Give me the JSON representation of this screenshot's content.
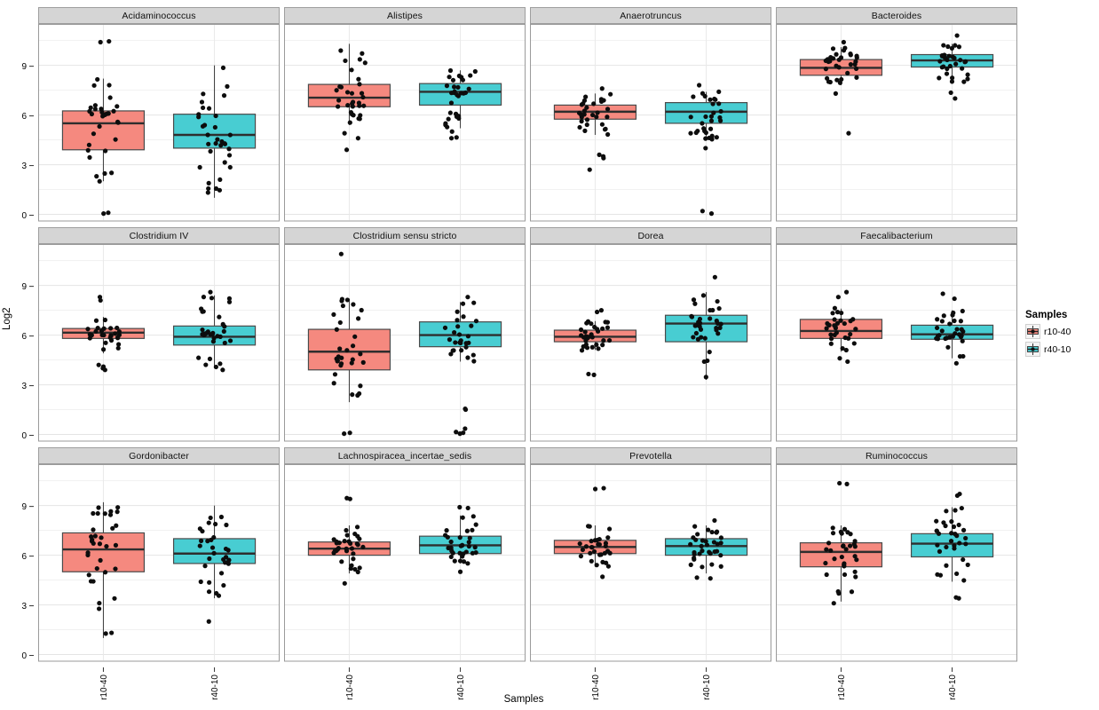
{
  "chart_data": {
    "type": "boxplot",
    "ylabel": "Log2",
    "xlabel": "Samples",
    "categories": [
      "r10-40",
      "r40-10"
    ],
    "y_ticks": [
      0,
      3,
      6,
      9
    ],
    "y_minor_ticks": [
      1.5,
      4.5,
      7.5,
      10.5
    ],
    "ylim": [
      -0.4,
      11.5
    ],
    "legend": {
      "title": "Samples",
      "entries": [
        {
          "label": "r10-40",
          "color": "#F5897F"
        },
        {
          "label": "r40-10",
          "color": "#48CDD2"
        }
      ]
    },
    "facets": [
      {
        "name": "Acidaminococcus",
        "groups": [
          {
            "sample": "r10-40",
            "whisker_low": 2.0,
            "q1": 3.9,
            "median": 5.5,
            "q3": 6.25,
            "whisker_high": 8.2,
            "outliers": [
              10.4,
              10.45,
              2.3,
              0.05,
              0.1
            ],
            "n_points": 30
          },
          {
            "sample": "r40-10",
            "whisker_low": 1.0,
            "q1": 4.0,
            "median": 4.8,
            "q3": 6.05,
            "whisker_high": 9.0,
            "outliers": [],
            "n_points": 34
          }
        ]
      },
      {
        "name": "Alistipes",
        "groups": [
          {
            "sample": "r10-40",
            "whisker_low": 5.4,
            "q1": 6.5,
            "median": 7.05,
            "q3": 7.85,
            "whisker_high": 10.3,
            "outliers": [
              4.9,
              4.6,
              3.9
            ],
            "n_points": 31
          },
          {
            "sample": "r40-10",
            "whisker_low": 5.2,
            "q1": 6.6,
            "median": 7.4,
            "q3": 7.9,
            "whisker_high": 8.7,
            "outliers": [
              4.6,
              4.65,
              5.0
            ],
            "n_points": 31
          }
        ]
      },
      {
        "name": "Anaerotruncus",
        "groups": [
          {
            "sample": "r10-40",
            "whisker_low": 4.8,
            "q1": 5.75,
            "median": 6.2,
            "q3": 6.6,
            "whisker_high": 7.3,
            "outliers": [
              7.6,
              3.6,
              3.4,
              3.5,
              2.7
            ],
            "n_points": 29
          },
          {
            "sample": "r40-10",
            "whisker_low": 4.5,
            "q1": 5.5,
            "median": 6.2,
            "q3": 6.75,
            "whisker_high": 7.4,
            "outliers": [
              7.8,
              4.0,
              0.2,
              0.05
            ],
            "n_points": 30
          }
        ]
      },
      {
        "name": "Bacteroides",
        "groups": [
          {
            "sample": "r10-40",
            "whisker_low": 7.8,
            "q1": 8.4,
            "median": 8.85,
            "q3": 9.35,
            "whisker_high": 10.1,
            "outliers": [
              10.4,
              7.3,
              4.9
            ],
            "n_points": 31
          },
          {
            "sample": "r40-10",
            "whisker_low": 7.9,
            "q1": 8.9,
            "median": 9.3,
            "q3": 9.65,
            "whisker_high": 10.3,
            "outliers": [
              10.8,
              7.0,
              7.35
            ],
            "n_points": 31
          }
        ]
      },
      {
        "name": "Clostridium IV",
        "groups": [
          {
            "sample": "r10-40",
            "whisker_low": 4.9,
            "q1": 5.8,
            "median": 6.15,
            "q3": 6.4,
            "whisker_high": 7.1,
            "outliers": [
              8.3,
              8.1,
              4.2,
              3.9,
              4.0,
              4.1
            ],
            "n_points": 28
          },
          {
            "sample": "r40-10",
            "whisker_low": 4.0,
            "q1": 5.4,
            "median": 5.9,
            "q3": 6.55,
            "whisker_high": 8.4,
            "outliers": [
              8.6,
              3.9
            ],
            "n_points": 32
          }
        ]
      },
      {
        "name": "Clostridium sensu stricto",
        "groups": [
          {
            "sample": "r10-40",
            "whisker_low": 1.95,
            "q1": 3.9,
            "median": 5.0,
            "q3": 6.35,
            "whisker_high": 8.2,
            "outliers": [
              10.9,
              0.05,
              0.1
            ],
            "n_points": 31
          },
          {
            "sample": "r40-10",
            "whisker_low": 4.4,
            "q1": 5.3,
            "median": 6.0,
            "q3": 6.8,
            "whisker_high": 8.0,
            "outliers": [
              8.3,
              1.5,
              1.55,
              0.05,
              0.1,
              0.15,
              0.35
            ],
            "n_points": 27
          }
        ]
      },
      {
        "name": "Dorea",
        "groups": [
          {
            "sample": "r10-40",
            "whisker_low": 5.1,
            "q1": 5.6,
            "median": 5.9,
            "q3": 6.3,
            "whisker_high": 6.85,
            "outliers": [
              7.5,
              7.4,
              3.6,
              3.65
            ],
            "n_points": 30
          },
          {
            "sample": "r40-10",
            "whisker_low": 3.3,
            "q1": 5.6,
            "median": 6.7,
            "q3": 7.2,
            "whisker_high": 8.6,
            "outliers": [
              9.5,
              4.4
            ],
            "n_points": 32
          }
        ]
      },
      {
        "name": "Faecalibacterium",
        "groups": [
          {
            "sample": "r10-40",
            "whisker_low": 5.0,
            "q1": 5.8,
            "median": 6.25,
            "q3": 6.95,
            "whisker_high": 7.6,
            "outliers": [
              8.6,
              8.3,
              4.4,
              4.6
            ],
            "n_points": 28
          },
          {
            "sample": "r40-10",
            "whisker_low": 4.6,
            "q1": 5.75,
            "median": 6.05,
            "q3": 6.6,
            "whisker_high": 7.5,
            "outliers": [
              8.5,
              8.2,
              4.3
            ],
            "n_points": 30
          }
        ]
      },
      {
        "name": "Gordonibacter",
        "groups": [
          {
            "sample": "r10-40",
            "whisker_low": 1.0,
            "q1": 5.0,
            "median": 6.35,
            "q3": 7.35,
            "whisker_high": 9.2,
            "outliers": [],
            "n_points": 34
          },
          {
            "sample": "r40-10",
            "whisker_low": 3.4,
            "q1": 5.5,
            "median": 6.1,
            "q3": 7.0,
            "whisker_high": 9.0,
            "outliers": [
              2.0
            ],
            "n_points": 32
          }
        ]
      },
      {
        "name": "Lachnospiracea_incertae_sedis",
        "groups": [
          {
            "sample": "r10-40",
            "whisker_low": 4.9,
            "q1": 6.0,
            "median": 6.4,
            "q3": 6.8,
            "whisker_high": 7.8,
            "outliers": [
              9.4,
              9.45,
              4.3
            ],
            "n_points": 32
          },
          {
            "sample": "r40-10",
            "whisker_low": 5.5,
            "q1": 6.1,
            "median": 6.6,
            "q3": 7.15,
            "whisker_high": 8.4,
            "outliers": [
              8.9,
              8.85,
              5.0
            ],
            "n_points": 32
          }
        ]
      },
      {
        "name": "Prevotella",
        "groups": [
          {
            "sample": "r10-40",
            "whisker_low": 5.3,
            "q1": 6.1,
            "median": 6.5,
            "q3": 6.9,
            "whisker_high": 7.8,
            "outliers": [
              10.0,
              10.05,
              4.7
            ],
            "n_points": 30
          },
          {
            "sample": "r40-10",
            "whisker_low": 4.9,
            "q1": 6.0,
            "median": 6.55,
            "q3": 7.0,
            "whisker_high": 7.8,
            "outliers": [
              8.1,
              4.6,
              4.65
            ],
            "n_points": 32
          }
        ]
      },
      {
        "name": "Ruminococcus",
        "groups": [
          {
            "sample": "r10-40",
            "whisker_low": 3.2,
            "q1": 5.3,
            "median": 6.2,
            "q3": 6.75,
            "whisker_high": 7.8,
            "outliers": [
              10.3,
              10.35,
              3.1
            ],
            "n_points": 32
          },
          {
            "sample": "r40-10",
            "whisker_low": 4.4,
            "q1": 5.9,
            "median": 6.7,
            "q3": 7.3,
            "whisker_high": 8.9,
            "outliers": [
              9.6,
              9.7,
              3.4,
              3.45
            ],
            "n_points": 32
          }
        ]
      }
    ]
  },
  "colors": {
    "box_fill_r10_40": "#F5897F",
    "box_fill_r40_10": "#48CDD2",
    "box_stroke": "#4a4a4a",
    "median": "#2e2e2e",
    "point": "#0d0d0d",
    "strip_bg": "#d5d5d5",
    "strip_border": "#9e9e9e",
    "panel_border": "#9a9a9a",
    "grid_major": "#e4e4e4",
    "grid_minor": "#f1f1f1",
    "grid_vertical": "#e9e9e9"
  }
}
